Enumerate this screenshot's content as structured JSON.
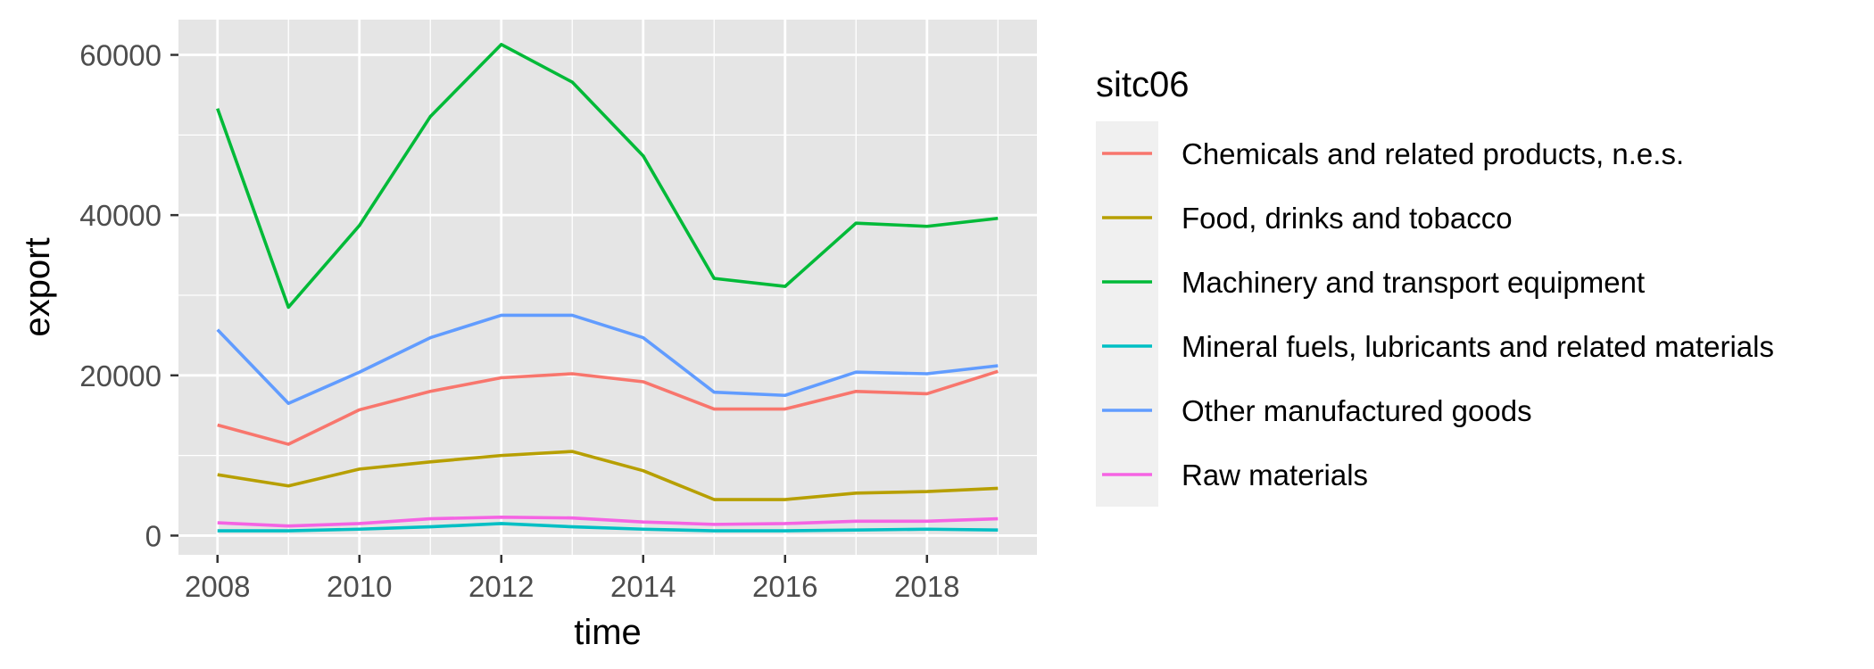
{
  "chart_data": {
    "type": "line",
    "title": "",
    "xlabel": "time",
    "ylabel": "export",
    "xlim": [
      2007.45,
      2019.55
    ],
    "ylim": [
      -2400,
      64400
    ],
    "grid": true,
    "x": [
      2008,
      2009,
      2010,
      2011,
      2012,
      2013,
      2014,
      2015,
      2016,
      2017,
      2018,
      2019
    ],
    "x_ticks": [
      2008,
      2010,
      2012,
      2014,
      2016,
      2018
    ],
    "x_tick_labels": [
      "2008",
      "2010",
      "2012",
      "2014",
      "2016",
      "2018"
    ],
    "y_ticks": [
      0,
      20000,
      40000,
      60000
    ],
    "y_tick_labels": [
      "0",
      "20000",
      "40000",
      "60000"
    ],
    "legend_title": "sitc06",
    "legend_position": "right",
    "series": [
      {
        "name": "Chemicals and related products, n.e.s.",
        "color": "#f8766d",
        "values": [
          13800,
          11400,
          15700,
          18000,
          19700,
          20200,
          19200,
          15800,
          15800,
          18000,
          17700,
          20500
        ]
      },
      {
        "name": "Food, drinks and tobacco",
        "color": "#b79f00",
        "values": [
          7600,
          6200,
          8300,
          9200,
          10000,
          10500,
          8100,
          4500,
          4500,
          5300,
          5500,
          5900
        ]
      },
      {
        "name": "Machinery and transport equipment",
        "color": "#00ba38",
        "values": [
          53300,
          28500,
          38700,
          52300,
          61300,
          56600,
          47400,
          32100,
          31100,
          39000,
          38600,
          39600
        ]
      },
      {
        "name": "Mineral fuels, lubricants and related materials",
        "color": "#00bfc4",
        "values": [
          600,
          600,
          800,
          1100,
          1500,
          1100,
          800,
          600,
          600,
          700,
          800,
          700
        ]
      },
      {
        "name": "Other manufactured goods",
        "color": "#619cff",
        "values": [
          25700,
          16500,
          20400,
          24700,
          27500,
          27500,
          24700,
          17900,
          17500,
          20400,
          20200,
          21200
        ]
      },
      {
        "name": "Raw materials",
        "color": "#f564e3",
        "values": [
          1600,
          1200,
          1500,
          2100,
          2300,
          2200,
          1700,
          1400,
          1500,
          1800,
          1800,
          2100
        ]
      }
    ]
  },
  "style": {
    "panel_background": "#e5e5e5",
    "grid_color": "#ffffff",
    "legend_key_background": "#f0f0f0",
    "tick_color": "#333333"
  }
}
